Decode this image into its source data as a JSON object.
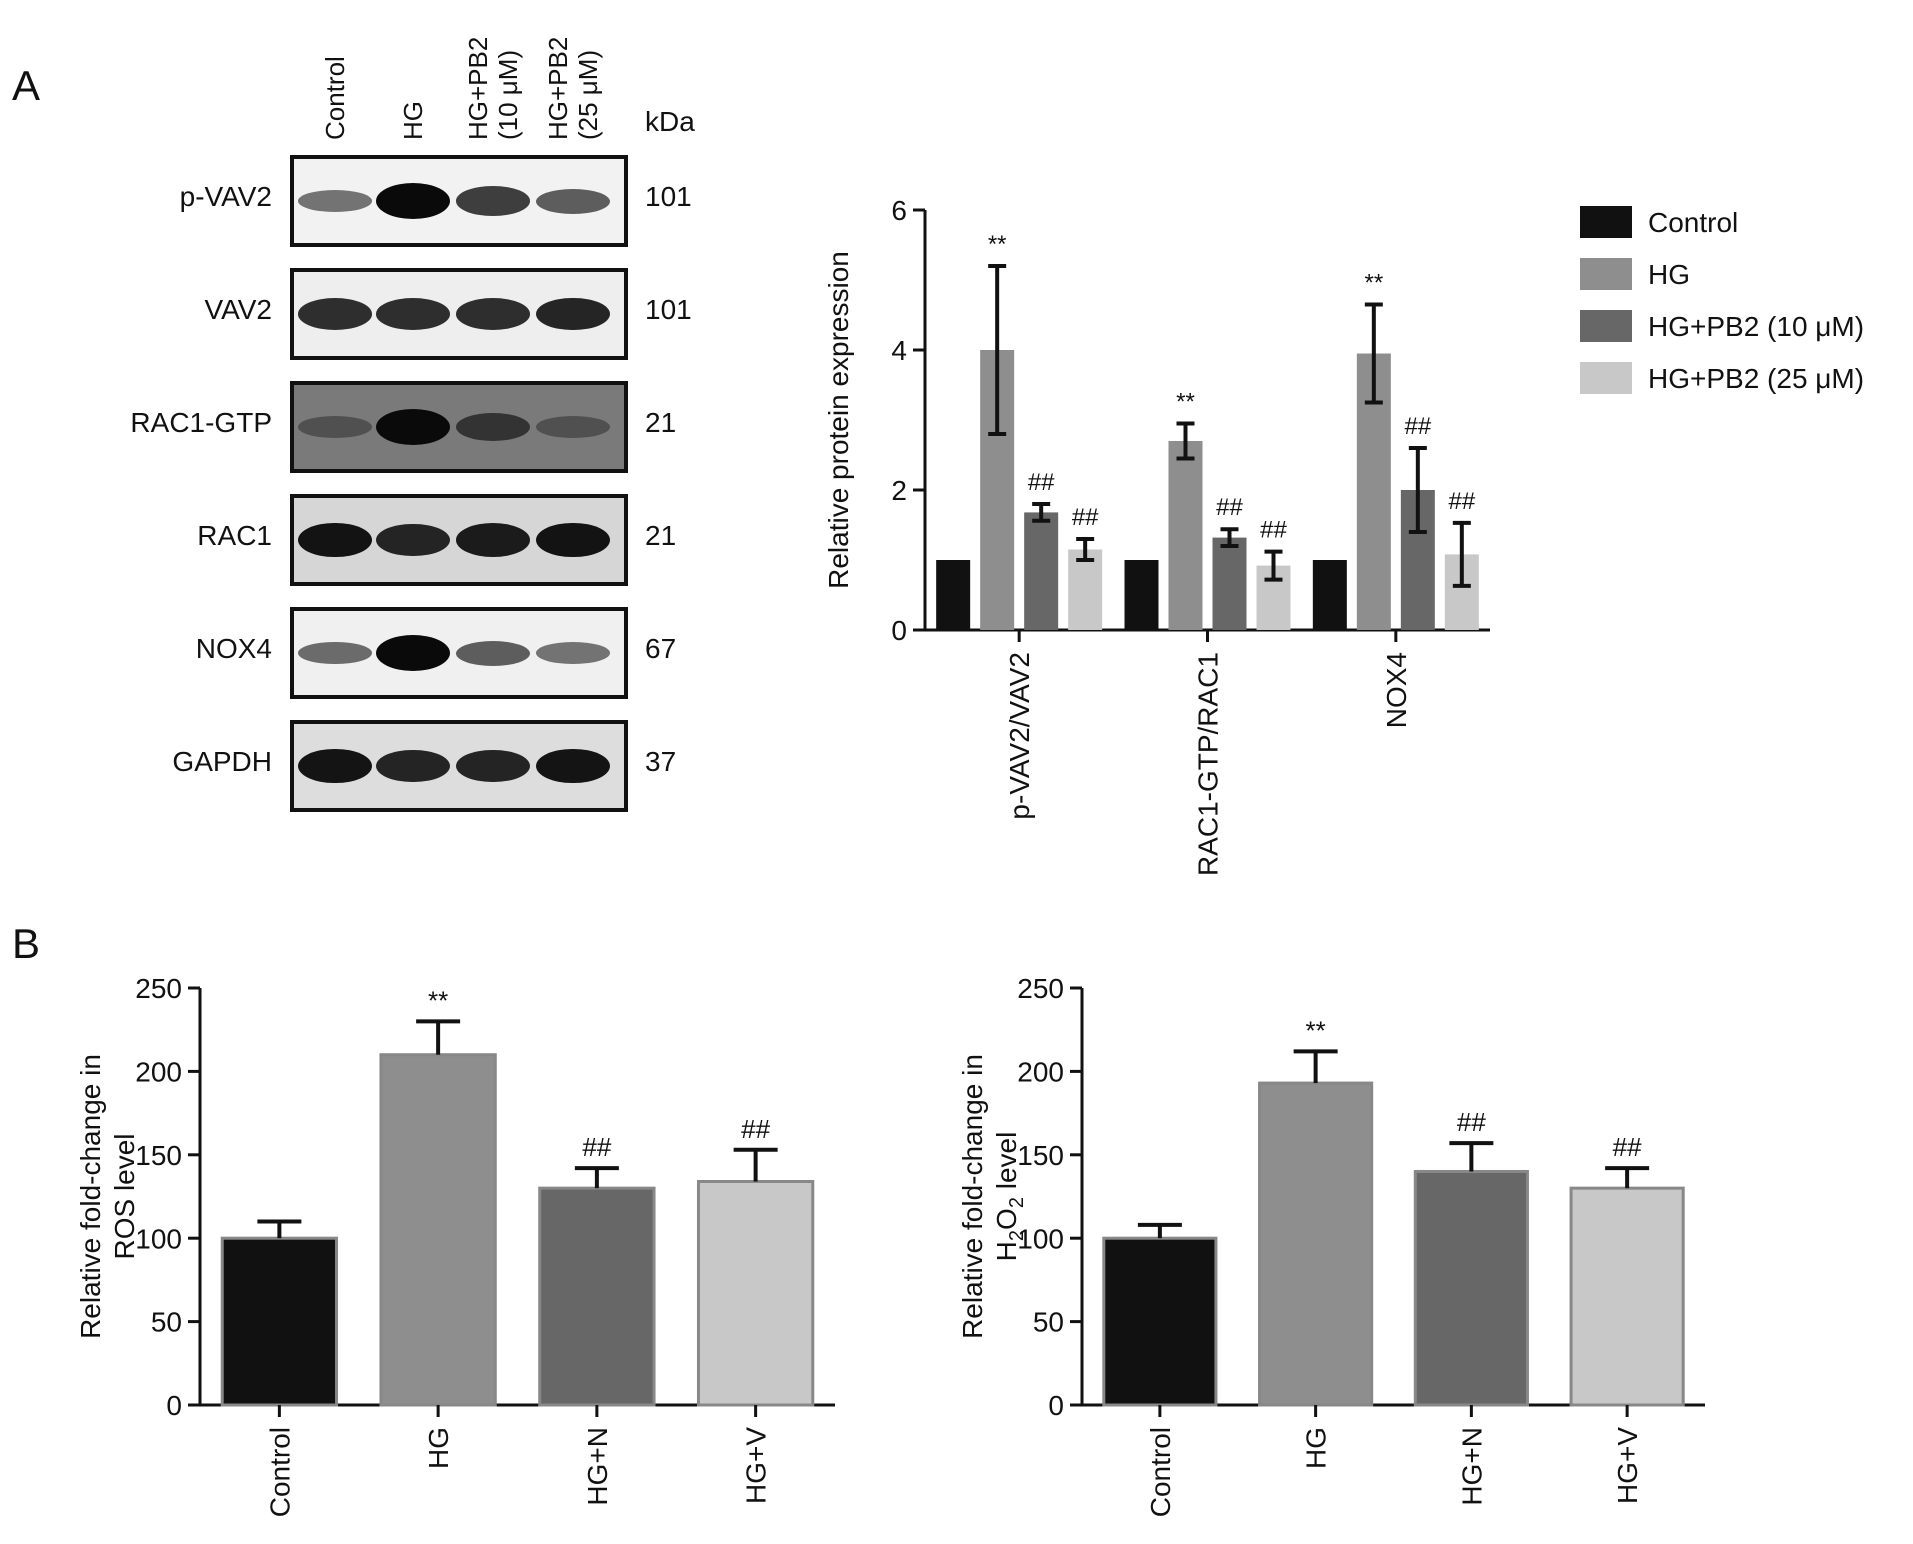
{
  "panel_letters": {
    "a": "A",
    "b": "B"
  },
  "blot": {
    "lanes": [
      "Control",
      "HG",
      "HG+PB2\n(10 μM)",
      "HG+PB2\n(25 μM)"
    ],
    "kda_label": "kDa",
    "rows": [
      {
        "label": "p-VAV2",
        "kda": "101",
        "bg": "#f2f2f2",
        "bands": [
          0.35,
          1.0,
          0.7,
          0.5
        ]
      },
      {
        "label": "VAV2",
        "kda": "101",
        "bg": "#eeeeee",
        "bands": [
          0.8,
          0.8,
          0.8,
          0.85
        ]
      },
      {
        "label": "RAC1-GTP",
        "kda": "21",
        "bg": "#7a7a7a",
        "bands": [
          0.35,
          1.0,
          0.65,
          0.35
        ]
      },
      {
        "label": "RAC1",
        "kda": "21",
        "bg": "#d6d6d6",
        "bands": [
          0.95,
          0.85,
          0.9,
          0.95
        ]
      },
      {
        "label": "NOX4",
        "kda": "67",
        "bg": "#f0f0f0",
        "bands": [
          0.4,
          1.0,
          0.5,
          0.35
        ]
      },
      {
        "label": "GAPDH",
        "kda": "37",
        "bg": "#dddddd",
        "bands": [
          0.95,
          0.85,
          0.85,
          0.95
        ]
      }
    ]
  },
  "chart_data": [
    {
      "type": "bar",
      "title": "",
      "xlabel": "",
      "ylabel": "Relative protein expression",
      "ylim": [
        0,
        6
      ],
      "yticks": [
        "0",
        "2",
        "4",
        "6"
      ],
      "categories": [
        "p-VAV2/VAV2",
        "RAC1-GTP/RAC1",
        "NOX4"
      ],
      "legend_position": "right",
      "series": [
        {
          "name": "Control",
          "color": "#111111",
          "values": [
            1.0,
            1.0,
            1.0
          ],
          "errors": [
            0,
            0,
            0
          ],
          "annotations": [
            "",
            "",
            ""
          ]
        },
        {
          "name": "HG",
          "color": "#8e8e8e",
          "values": [
            4.0,
            2.7,
            3.95
          ],
          "errors": [
            1.2,
            0.25,
            0.7
          ],
          "annotations": [
            "**",
            "**",
            "**"
          ]
        },
        {
          "name": "HG+PB2 (10 μM)",
          "color": "#676767",
          "values": [
            1.68,
            1.32,
            2.0
          ],
          "errors": [
            0.12,
            0.12,
            0.6
          ],
          "annotations": [
            "##",
            "##",
            "##"
          ]
        },
        {
          "name": "HG+PB2 (25 μM)",
          "color": "#c8c8c8",
          "values": [
            1.15,
            0.92,
            1.08
          ],
          "errors": [
            0.15,
            0.2,
            0.45
          ],
          "annotations": [
            "##",
            "##",
            "##"
          ]
        }
      ]
    },
    {
      "type": "bar",
      "title": "",
      "xlabel": "",
      "ylabel": "Relative fold-change in ROS level",
      "ylim": [
        0,
        250
      ],
      "yticks": [
        "0",
        "50",
        "100",
        "150",
        "200",
        "250"
      ],
      "categories": [
        "Control",
        "HG",
        "HG+N",
        "HG+V"
      ],
      "colors": [
        "#111111",
        "#8e8e8e",
        "#676767",
        "#c8c8c8"
      ],
      "values": [
        100,
        210,
        130,
        134
      ],
      "errors": [
        10,
        20,
        12,
        19
      ],
      "annotations": [
        "",
        "**",
        "##",
        "##"
      ]
    },
    {
      "type": "bar",
      "title": "",
      "xlabel": "",
      "ylabel": "Relative fold-change in H2O2 level",
      "ylim": [
        0,
        250
      ],
      "yticks": [
        "0",
        "50",
        "100",
        "150",
        "200",
        "250"
      ],
      "categories": [
        "Control",
        "HG",
        "HG+N",
        "HG+V"
      ],
      "colors": [
        "#111111",
        "#8e8e8e",
        "#676767",
        "#c8c8c8"
      ],
      "values": [
        100,
        193,
        140,
        130
      ],
      "errors": [
        8,
        19,
        17,
        12
      ],
      "annotations": [
        "",
        "**",
        "##",
        "##"
      ]
    }
  ]
}
